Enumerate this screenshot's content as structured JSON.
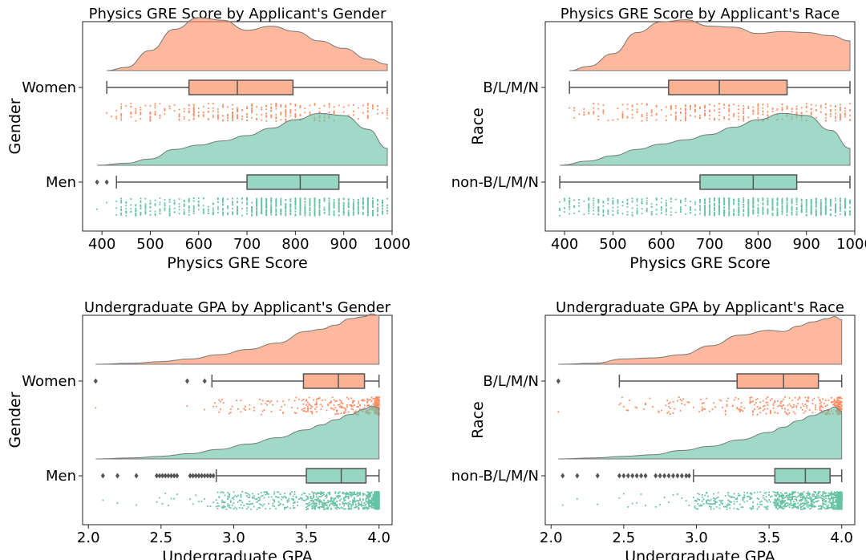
{
  "colors": {
    "women": "#fc8d62",
    "men": "#66c2a5",
    "dens_edge": "#777777",
    "box_line": "#555555",
    "axes": "#222222"
  },
  "chart_data": [
    {
      "type": "raincloud",
      "title": "Physics GRE Score by Applicant's Gender",
      "xlabel": "Physics GRE Score",
      "ylabel": "Gender",
      "xlim": [
        360,
        1000
      ],
      "xticks": [
        400,
        500,
        600,
        700,
        800,
        900,
        1000
      ],
      "xtick_labels": [
        "400",
        "500",
        "600",
        "700",
        "800",
        "900",
        "1000"
      ],
      "series": [
        {
          "name": "Women",
          "color_key": "women",
          "min": 410,
          "q1": 580,
          "median": 680,
          "q3": 795,
          "max": 990,
          "outliers": [],
          "density": {
            "x": [
              410,
              450,
              500,
              550,
              600,
              650,
              700,
              750,
              800,
              850,
              900,
              950,
              990
            ],
            "y": [
              0.0,
              0.06,
              0.38,
              0.78,
              1.0,
              0.95,
              0.76,
              0.84,
              0.74,
              0.56,
              0.42,
              0.22,
              0.12
            ]
          }
        },
        {
          "name": "Men",
          "color_key": "men",
          "min": 430,
          "q1": 700,
          "median": 810,
          "q3": 890,
          "max": 990,
          "outliers": [
            390,
            410
          ],
          "density": {
            "x": [
              390,
              450,
              500,
              550,
              600,
              650,
              700,
              750,
              800,
              850,
              900,
              950,
              990
            ],
            "y": [
              0.0,
              0.04,
              0.12,
              0.3,
              0.38,
              0.46,
              0.56,
              0.7,
              0.86,
              0.98,
              0.94,
              0.68,
              0.32
            ]
          }
        }
      ]
    },
    {
      "type": "raincloud",
      "title": "Physics GRE Score by Applicant's Race",
      "xlabel": "Physics GRE Score",
      "ylabel": "Race",
      "xlim": [
        360,
        1000
      ],
      "xticks": [
        400,
        500,
        600,
        700,
        800,
        900,
        1000
      ],
      "xtick_labels": [
        "400",
        "500",
        "600",
        "700",
        "800",
        "900",
        "1000"
      ],
      "series": [
        {
          "name": "B/L/M/N",
          "color_key": "women",
          "min": 410,
          "q1": 615,
          "median": 720,
          "q3": 860,
          "max": 990,
          "outliers": [],
          "density": {
            "x": [
              410,
              450,
              500,
              550,
              600,
              650,
              700,
              750,
              800,
              850,
              900,
              950,
              990
            ],
            "y": [
              0.0,
              0.08,
              0.32,
              0.72,
              0.92,
              0.96,
              0.84,
              0.82,
              0.7,
              0.74,
              0.72,
              0.66,
              0.56
            ]
          }
        },
        {
          "name": "non-B/L/M/N",
          "color_key": "men",
          "min": 390,
          "q1": 680,
          "median": 790,
          "q3": 880,
          "max": 990,
          "outliers": [],
          "density": {
            "x": [
              390,
              450,
              500,
              550,
              600,
              650,
              700,
              750,
              800,
              850,
              900,
              950,
              990
            ],
            "y": [
              0.0,
              0.08,
              0.18,
              0.3,
              0.4,
              0.48,
              0.58,
              0.72,
              0.86,
              0.98,
              0.94,
              0.66,
              0.32
            ]
          }
        }
      ]
    },
    {
      "type": "raincloud",
      "title": "Undergraduate GPA by Applicant's Gender",
      "xlabel": "Undergraduate GPA",
      "ylabel": "Gender",
      "xlim": [
        1.96,
        4.09
      ],
      "xticks": [
        2.0,
        2.5,
        3.0,
        3.5,
        4.0
      ],
      "xtick_labels": [
        "2.0",
        "2.5",
        "3.0",
        "3.5",
        "4.0"
      ],
      "series": [
        {
          "name": "Women",
          "color_key": "women",
          "min": 2.85,
          "q1": 3.48,
          "median": 3.72,
          "q3": 3.9,
          "max": 4.0,
          "outliers": [
            2.05,
            2.68,
            2.8
          ],
          "density": {
            "x": [
              2.05,
              2.3,
              2.5,
              2.7,
              2.9,
              3.1,
              3.3,
              3.5,
              3.6,
              3.7,
              3.8,
              3.9,
              3.95,
              4.0
            ],
            "y": [
              0.0,
              0.02,
              0.05,
              0.1,
              0.18,
              0.28,
              0.4,
              0.62,
              0.66,
              0.74,
              0.86,
              0.9,
              0.95,
              0.92
            ]
          }
        },
        {
          "name": "Men",
          "color_key": "men",
          "min": 2.88,
          "q1": 3.5,
          "median": 3.74,
          "q3": 3.91,
          "max": 4.0,
          "outliers": [
            2.1,
            2.2,
            2.33,
            2.47,
            2.49,
            2.51,
            2.53,
            2.55,
            2.57,
            2.59,
            2.61,
            2.7,
            2.72,
            2.74,
            2.76,
            2.78,
            2.8,
            2.82,
            2.84,
            2.86
          ],
          "density": {
            "x": [
              2.05,
              2.3,
              2.5,
              2.7,
              2.9,
              3.1,
              3.3,
              3.5,
              3.6,
              3.7,
              3.8,
              3.9,
              3.95,
              4.0
            ],
            "y": [
              0.0,
              0.02,
              0.05,
              0.1,
              0.18,
              0.28,
              0.4,
              0.55,
              0.64,
              0.74,
              0.84,
              0.94,
              1.0,
              0.96
            ]
          }
        }
      ]
    },
    {
      "type": "raincloud",
      "title": "Undergraduate GPA by Applicant's Race",
      "xlabel": "Undergraduate GPA",
      "ylabel": "Race",
      "xlim": [
        1.96,
        4.09
      ],
      "xticks": [
        2.0,
        2.5,
        3.0,
        3.5,
        4.0
      ],
      "xtick_labels": [
        "2.0",
        "2.5",
        "3.0",
        "3.5",
        "4.0"
      ],
      "series": [
        {
          "name": "B/L/M/N",
          "color_key": "women",
          "min": 2.47,
          "q1": 3.28,
          "median": 3.6,
          "q3": 3.84,
          "max": 4.0,
          "outliers": [
            2.05
          ],
          "density": {
            "x": [
              2.05,
              2.3,
              2.5,
              2.7,
              2.9,
              3.1,
              3.3,
              3.5,
              3.6,
              3.7,
              3.8,
              3.9,
              3.95,
              4.0
            ],
            "y": [
              0.0,
              0.02,
              0.1,
              0.12,
              0.18,
              0.35,
              0.55,
              0.64,
              0.62,
              0.72,
              0.8,
              0.86,
              0.9,
              0.84
            ]
          }
        },
        {
          "name": "non-B/L/M/N",
          "color_key": "men",
          "min": 2.98,
          "q1": 3.54,
          "median": 3.75,
          "q3": 3.92,
          "max": 4.0,
          "outliers": [
            2.08,
            2.18,
            2.32,
            2.47,
            2.5,
            2.53,
            2.56,
            2.59,
            2.62,
            2.65,
            2.72,
            2.75,
            2.78,
            2.81,
            2.84,
            2.87,
            2.9,
            2.93,
            2.95
          ],
          "density": {
            "x": [
              2.05,
              2.3,
              2.5,
              2.7,
              2.9,
              3.1,
              3.3,
              3.5,
              3.6,
              3.7,
              3.8,
              3.9,
              3.95,
              4.0
            ],
            "y": [
              0.0,
              0.02,
              0.05,
              0.08,
              0.16,
              0.24,
              0.36,
              0.5,
              0.6,
              0.72,
              0.82,
              0.92,
              0.98,
              0.9
            ]
          }
        }
      ]
    }
  ]
}
